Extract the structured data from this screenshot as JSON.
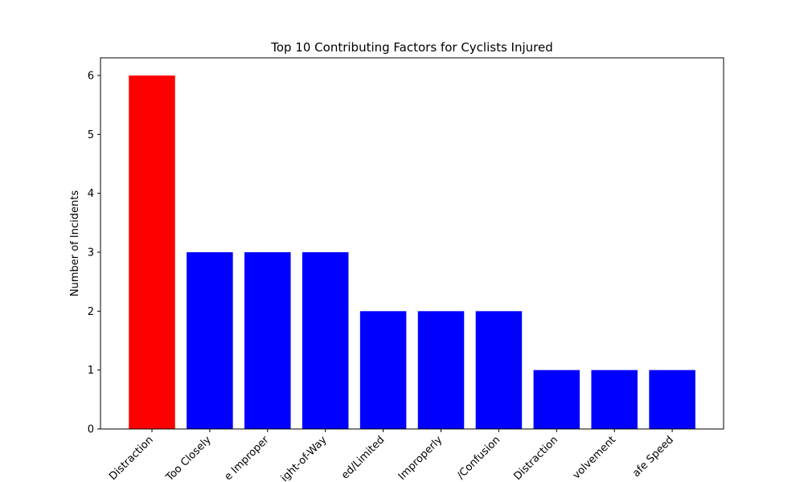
{
  "chart_data": {
    "type": "bar",
    "title": "Top 10 Contributing Factors for Cyclists Injured",
    "xlabel": "",
    "ylabel": "Number of Incidents",
    "ylim": [
      0,
      6.3
    ],
    "yticks": [
      0,
      1,
      2,
      3,
      4,
      5,
      6
    ],
    "categories": [
      "Distraction",
      "Too Closely",
      "e Improper",
      "ight-of-Way",
      "ed/Limited",
      "Improperly",
      "/Confusion",
      "Distraction",
      "volvement",
      "afe Speed"
    ],
    "values": [
      6,
      3,
      3,
      3,
      2,
      2,
      2,
      1,
      1,
      1
    ],
    "bar_colors": [
      "#ff0000",
      "#0000ff",
      "#0000ff",
      "#0000ff",
      "#0000ff",
      "#0000ff",
      "#0000ff",
      "#0000ff",
      "#0000ff",
      "#0000ff"
    ],
    "grid": false,
    "legend": "none"
  }
}
